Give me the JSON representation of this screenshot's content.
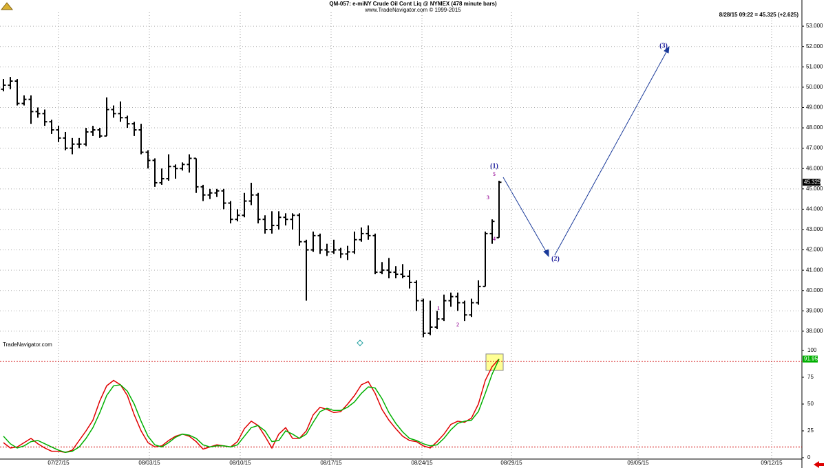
{
  "chart_data": [
    {
      "type": "ohlc",
      "title": "QM-057:  e-miNY Crude Oil Cont Liq @ NYMEX  (478 minute bars)",
      "subtitle": "www.TradeNavigator.com © 1999-2015",
      "status": "8/28/15 09:22 = 45.325 (+2.625)",
      "watermark": "TradeNavigator.com",
      "color": "#000000",
      "open": [
        49.9,
        50.1,
        50.3,
        49.2,
        49.4,
        48.8,
        48.7,
        48.3,
        47.9,
        47.5,
        47.0,
        47.2,
        47.2,
        47.8,
        47.9,
        47.6,
        48.9,
        48.7,
        48.5,
        48.2,
        47.9,
        46.8,
        46.4,
        45.3,
        45.5,
        46.1,
        46.0,
        46.2,
        46.5,
        45.1,
        44.7,
        44.8,
        44.9,
        44.3,
        43.5,
        43.7,
        44.4,
        44.7,
        43.5,
        43.0,
        43.2,
        43.6,
        43.5,
        43.7,
        42.4,
        42.0,
        42.7,
        42.0,
        41.9,
        42.0,
        41.8,
        41.9,
        42.5,
        42.8,
        42.7,
        40.9,
        41.0,
        40.9,
        40.8,
        40.7,
        40.4,
        39.5,
        37.9,
        38.2,
        38.6,
        39.5,
        39.7,
        39.4,
        38.8,
        39.4,
        40.2,
        42.8,
        42.6
      ],
      "high": [
        50.4,
        50.5,
        50.4,
        49.6,
        49.6,
        49.0,
        48.9,
        48.4,
        48.1,
        47.8,
        47.5,
        47.5,
        48.0,
        48.1,
        48.0,
        49.5,
        49.1,
        49.3,
        48.6,
        48.3,
        48.2,
        46.9,
        46.5,
        46.0,
        46.7,
        46.2,
        46.3,
        46.7,
        46.5,
        45.2,
        45.0,
        45.0,
        45.0,
        44.4,
        44.0,
        44.8,
        45.3,
        44.8,
        43.7,
        43.9,
        43.9,
        43.8,
        43.8,
        43.8,
        42.5,
        42.9,
        42.8,
        42.3,
        42.5,
        42.1,
        42.2,
        42.9,
        43.1,
        43.2,
        42.8,
        41.4,
        41.6,
        41.2,
        41.3,
        41.0,
        40.5,
        39.6,
        39.5,
        39.0,
        39.8,
        39.9,
        39.9,
        39.5,
        39.6,
        40.5,
        42.9,
        43.5,
        45.4
      ],
      "low": [
        49.8,
        49.9,
        49.1,
        49.1,
        48.2,
        48.5,
        48.1,
        47.7,
        47.3,
        46.9,
        46.7,
        47.0,
        47.1,
        47.6,
        47.5,
        47.6,
        48.5,
        48.3,
        48.0,
        47.6,
        46.7,
        46.0,
        45.1,
        45.2,
        45.4,
        45.5,
        45.9,
        45.8,
        44.8,
        44.4,
        44.5,
        44.6,
        44.0,
        43.3,
        43.4,
        43.6,
        44.2,
        43.3,
        42.8,
        42.8,
        43.0,
        43.2,
        43.0,
        42.2,
        39.5,
        41.9,
        41.8,
        41.7,
        41.8,
        41.6,
        41.5,
        41.8,
        42.4,
        42.5,
        40.8,
        40.8,
        40.6,
        40.6,
        40.6,
        40.1,
        39.0,
        37.7,
        37.8,
        38.1,
        38.5,
        39.2,
        39.0,
        38.5,
        38.7,
        39.3,
        40.2,
        42.3,
        42.6
      ],
      "close": [
        50.1,
        50.3,
        49.2,
        49.4,
        48.8,
        48.7,
        48.3,
        47.9,
        47.5,
        47.0,
        47.2,
        47.2,
        47.8,
        47.9,
        47.6,
        48.9,
        48.7,
        48.5,
        48.2,
        47.9,
        46.8,
        46.4,
        45.3,
        45.5,
        46.1,
        46.0,
        46.2,
        46.5,
        45.1,
        44.7,
        44.8,
        44.9,
        44.3,
        43.5,
        43.7,
        44.4,
        44.7,
        43.5,
        43.0,
        43.2,
        43.6,
        43.5,
        43.7,
        42.4,
        42.0,
        42.7,
        42.0,
        41.9,
        42.0,
        41.8,
        41.9,
        42.5,
        42.8,
        42.7,
        40.9,
        41.0,
        40.9,
        40.8,
        40.7,
        40.4,
        39.5,
        37.9,
        38.2,
        38.6,
        39.5,
        39.7,
        39.4,
        38.8,
        39.4,
        40.2,
        42.8,
        43.4,
        45.325
      ],
      "ylim": [
        37.22,
        53.68
      ],
      "yticks": [
        {
          "value": 38,
          "label": "38.000"
        },
        {
          "value": 39,
          "label": "39.000"
        },
        {
          "value": 40,
          "label": "40.000"
        },
        {
          "value": 41,
          "label": "41.000"
        },
        {
          "value": 42,
          "label": "42.000"
        },
        {
          "value": 43,
          "label": "43.000"
        },
        {
          "value": 44,
          "label": "44.000"
        },
        {
          "value": 45,
          "label": "45.000"
        },
        {
          "value": 46,
          "label": "46.000"
        },
        {
          "value": 47,
          "label": "47.000"
        },
        {
          "value": 48,
          "label": "48.000"
        },
        {
          "value": 49,
          "label": "49.000"
        },
        {
          "value": 50,
          "label": "50.000"
        },
        {
          "value": 51,
          "label": "51.000"
        },
        {
          "value": 52,
          "label": "52.000"
        },
        {
          "value": 53,
          "label": "53.000"
        }
      ],
      "xlim": [
        -0.5,
        116
      ],
      "xticks": [
        {
          "value": 8,
          "label": "07/27/15"
        },
        {
          "value": 21.2,
          "label": "08/03/15"
        },
        {
          "value": 34.4,
          "label": "08/10/15"
        },
        {
          "value": 47.6,
          "label": "08/17/15"
        },
        {
          "value": 60.8,
          "label": "08/24/15"
        },
        {
          "value": 73.8,
          "label": "08/29/15"
        },
        {
          "value": 92.2,
          "label": "09/05/15"
        },
        {
          "value": 111.6,
          "label": "09/12/15"
        }
      ],
      "grid": true,
      "annotations": [
        "1",
        "2",
        "3",
        "4",
        "5",
        "(1)",
        "(2)",
        "(3)"
      ]
    },
    {
      "type": "line",
      "series": [
        {
          "color": "#e00000",
          "values": [
            14,
            9,
            10,
            14,
            18,
            13,
            9,
            6,
            6,
            5,
            7,
            16,
            25,
            35,
            53,
            67,
            72,
            68,
            58,
            40,
            25,
            14,
            10,
            11,
            16,
            20,
            22,
            20,
            15,
            8,
            10,
            12,
            11,
            10,
            15,
            27,
            34,
            30,
            20,
            9,
            22,
            28,
            18,
            18,
            25,
            40,
            47,
            45,
            42,
            43,
            50,
            58,
            68,
            71,
            60,
            45,
            35,
            27,
            20,
            16,
            15,
            11,
            9,
            15,
            22,
            31,
            34,
            33,
            37,
            50,
            72,
            85,
            92
          ]
        },
        {
          "color": "#00b000",
          "values": [
            20,
            13,
            9,
            11,
            15,
            16,
            13,
            10,
            7,
            5,
            6,
            10,
            18,
            28,
            42,
            58,
            67,
            68,
            62,
            50,
            34,
            20,
            12,
            10,
            14,
            19,
            22,
            21,
            18,
            12,
            10,
            11,
            11,
            10,
            12,
            20,
            28,
            30,
            25,
            15,
            16,
            25,
            22,
            18,
            22,
            33,
            43,
            46,
            44,
            44,
            47,
            52,
            60,
            66,
            65,
            55,
            42,
            32,
            24,
            18,
            16,
            13,
            11,
            12,
            18,
            26,
            32,
            34,
            35,
            43,
            60,
            78,
            91.95
          ]
        }
      ],
      "ylim": [
        -1.3,
        101.9
      ],
      "yticks": [
        0,
        25,
        50,
        75,
        100
      ],
      "levels": [
        10,
        90
      ],
      "grid": false
    }
  ]
}
